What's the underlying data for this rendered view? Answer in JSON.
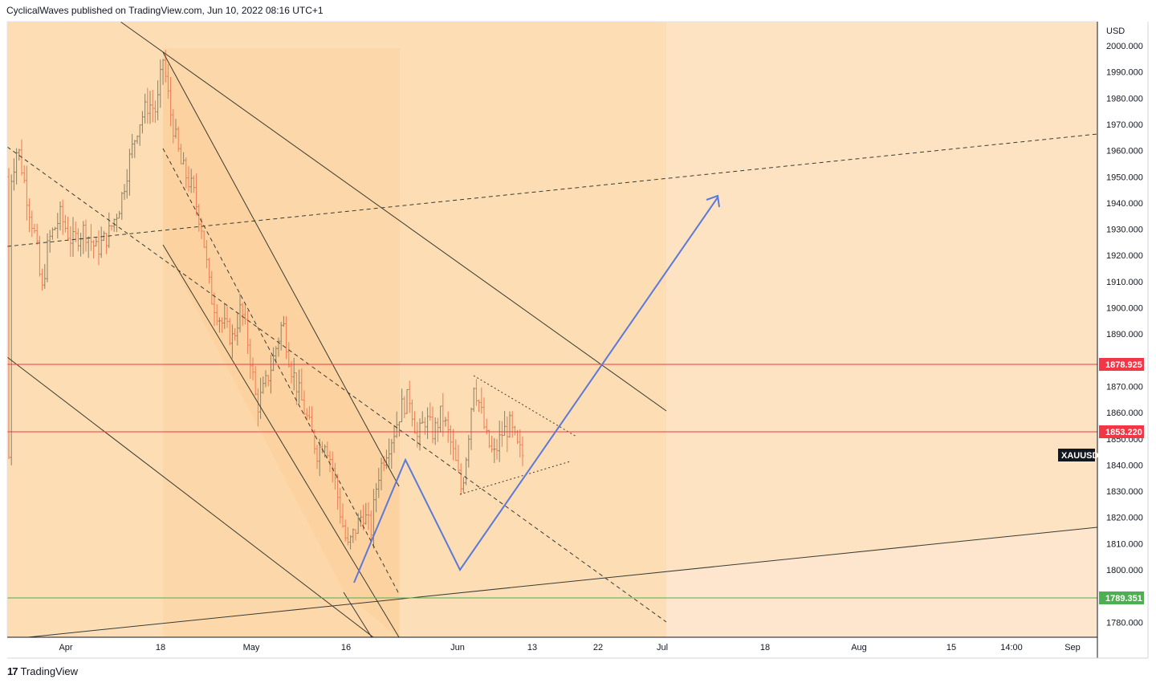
{
  "header": {
    "publisher_line": "CyclicalWaves published on TradingView.com, Jun 10, 2022 08:16 UTC+1"
  },
  "footer": {
    "logo_mark": "17",
    "logo_text": "TradingView"
  },
  "chart_data": {
    "type": "candlestick",
    "symbol": "XAUUSD",
    "currency": "USD",
    "ylim": [
      1771,
      2011
    ],
    "y_ticks": [
      "2000.000",
      "1990.000",
      "1980.000",
      "1970.000",
      "1960.000",
      "1950.000",
      "1940.000",
      "1930.000",
      "1920.000",
      "1910.000",
      "1900.000",
      "1890.000",
      "1870.000",
      "1860.000",
      "1850.000",
      "1840.000",
      "1830.000",
      "1820.000",
      "1810.000",
      "1800.000",
      "1780.000"
    ],
    "x_ticks": [
      "Apr",
      "18",
      "May",
      "16",
      "Jun",
      "13",
      "22",
      "Jul",
      "18",
      "Aug",
      "15",
      "14:00",
      "Sep"
    ],
    "horizontal_levels": [
      {
        "label": "1878.925",
        "value": 1878.925,
        "color": "#f23645"
      },
      {
        "label": "1853.220",
        "value": 1853.22,
        "color": "#f23645"
      },
      {
        "label": "1789.351",
        "value": 1789.351,
        "color": "#4caf50"
      }
    ],
    "price_tag": {
      "label": "XAUUSD",
      "value": 1843.5
    },
    "colors": {
      "background": "#fde3c2",
      "light_zone": "#fde6cd",
      "dark_zone": "#fad8a8",
      "candle_up": "#8d7f63",
      "candle_down": "#f07a52",
      "projection": "#5b79d9",
      "trendline": "#3b3b32"
    },
    "projection_path": "Zig-zag forecast: rise from ~1795 (May 16) to ~1843, drop to ~1801 (Jun 1), then rally through 1878.925 to ~1944 by early July."
  }
}
